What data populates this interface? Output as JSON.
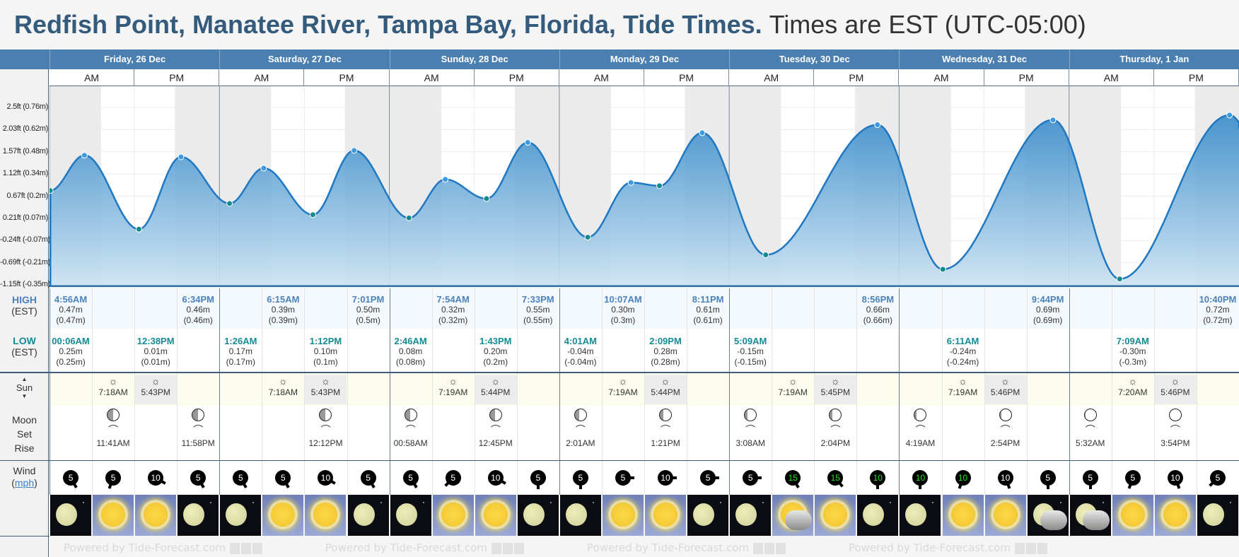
{
  "header": {
    "title": "Redfish Point, Manatee River, Tampa Bay, Florida, Tide Times.",
    "subtitle": "Times are EST (UTC-05:00)",
    "watermark": "Powered by Tide-Forecast.com"
  },
  "days": [
    {
      "label": "Friday, 26 Dec"
    },
    {
      "label": "Saturday, 27 Dec"
    },
    {
      "label": "Sunday, 28 Dec"
    },
    {
      "label": "Monday, 29 Dec"
    },
    {
      "label": "Tuesday, 30 Dec"
    },
    {
      "label": "Wednesday, 31 Dec"
    },
    {
      "label": "Thursday, 1 Jan"
    }
  ],
  "ampm": {
    "am": "AM",
    "pm": "PM"
  },
  "row_labels": {
    "high": "HIGH",
    "high_tz": "(EST)",
    "low": "LOW",
    "low_tz": "(EST)",
    "sun": "Sun",
    "moon": "Moon",
    "set": "Set",
    "rise": "Rise",
    "wind": "Wind",
    "wind_unit": "mph"
  },
  "chart_data": {
    "type": "area",
    "title": "Tide height",
    "y_ticks": [
      "2.5ft (0.76m)",
      "2.03ft (0.62m)",
      "1.57ft (0.48m)",
      "1.12ft (0.34m)",
      "0.67ft (0.2m)",
      "0.21ft (0.07m)",
      "-0.24ft (-0.07m)",
      "-0.69ft (-0.21m)",
      "-1.15ft (-0.35m)"
    ],
    "ylim_m": [
      -0.35,
      0.9
    ],
    "x_unit": "hours from Fri 26 Dec 00:00",
    "points": [
      {
        "h": 0.1,
        "m": 0.25,
        "type": "low"
      },
      {
        "h": 4.93,
        "m": 0.47,
        "type": "high"
      },
      {
        "h": 12.63,
        "m": 0.01,
        "type": "low"
      },
      {
        "h": 18.57,
        "m": 0.46,
        "type": "high"
      },
      {
        "h": 25.43,
        "m": 0.17,
        "type": "low"
      },
      {
        "h": 30.25,
        "m": 0.39,
        "type": "high"
      },
      {
        "h": 37.2,
        "m": 0.1,
        "type": "low"
      },
      {
        "h": 43.02,
        "m": 0.5,
        "type": "high"
      },
      {
        "h": 50.77,
        "m": 0.08,
        "type": "low"
      },
      {
        "h": 55.9,
        "m": 0.32,
        "type": "high"
      },
      {
        "h": 61.72,
        "m": 0.2,
        "type": "low"
      },
      {
        "h": 67.55,
        "m": 0.55,
        "type": "high"
      },
      {
        "h": 76.02,
        "m": -0.04,
        "type": "low"
      },
      {
        "h": 82.12,
        "m": 0.3,
        "type": "high"
      },
      {
        "h": 86.15,
        "m": 0.28,
        "type": "low"
      },
      {
        "h": 92.18,
        "m": 0.61,
        "type": "high"
      },
      {
        "h": 101.15,
        "m": -0.15,
        "type": "low"
      },
      {
        "h": 116.93,
        "m": 0.66,
        "type": "high"
      },
      {
        "h": 126.18,
        "m": -0.24,
        "type": "low"
      },
      {
        "h": 141.73,
        "m": 0.69,
        "type": "high"
      },
      {
        "h": 151.15,
        "m": -0.3,
        "type": "low"
      },
      {
        "h": 166.67,
        "m": 0.72,
        "type": "high"
      }
    ]
  },
  "high_tides": [
    {
      "time": "4:56AM",
      "m": "0.47m",
      "alt": "(0.47m)",
      "slot": 0
    },
    {
      "time": "6:34PM",
      "m": "0.46m",
      "alt": "(0.46m)",
      "slot": 3
    },
    {
      "time": "6:15AM",
      "m": "0.39m",
      "alt": "(0.39m)",
      "slot": 5
    },
    {
      "time": "7:01PM",
      "m": "0.50m",
      "alt": "(0.5m)",
      "slot": 7
    },
    {
      "time": "7:54AM",
      "m": "0.32m",
      "alt": "(0.32m)",
      "slot": 9
    },
    {
      "time": "7:33PM",
      "m": "0.55m",
      "alt": "(0.55m)",
      "slot": 11
    },
    {
      "time": "10:07AM",
      "m": "0.30m",
      "alt": "(0.3m)",
      "slot": 13
    },
    {
      "time": "8:11PM",
      "m": "0.61m",
      "alt": "(0.61m)",
      "slot": 15
    },
    {
      "time": "8:56PM",
      "m": "0.66m",
      "alt": "(0.66m)",
      "slot": 19
    },
    {
      "time": "9:44PM",
      "m": "0.69m",
      "alt": "(0.69m)",
      "slot": 23
    },
    {
      "time": "10:40PM",
      "m": "0.72m",
      "alt": "(0.72m)",
      "slot": 27
    }
  ],
  "low_tides": [
    {
      "time": "00:06AM",
      "m": "0.25m",
      "alt": "(0.25m)",
      "slot": 0
    },
    {
      "time": "12:38PM",
      "m": "0.01m",
      "alt": "(0.01m)",
      "slot": 2
    },
    {
      "time": "1:26AM",
      "m": "0.17m",
      "alt": "(0.17m)",
      "slot": 4
    },
    {
      "time": "1:12PM",
      "m": "0.10m",
      "alt": "(0.1m)",
      "slot": 6
    },
    {
      "time": "2:46AM",
      "m": "0.08m",
      "alt": "(0.08m)",
      "slot": 8
    },
    {
      "time": "1:43PM",
      "m": "0.20m",
      "alt": "(0.2m)",
      "slot": 10
    },
    {
      "time": "4:01AM",
      "m": "-0.04m",
      "alt": "(-0.04m)",
      "slot": 12
    },
    {
      "time": "2:09PM",
      "m": "0.28m",
      "alt": "(0.28m)",
      "slot": 14
    },
    {
      "time": "5:09AM",
      "m": "-0.15m",
      "alt": "(-0.15m)",
      "slot": 16
    },
    {
      "time": "6:11AM",
      "m": "-0.24m",
      "alt": "(-0.24m)",
      "slot": 21
    },
    {
      "time": "7:09AM",
      "m": "-0.30m",
      "alt": "(-0.3m)",
      "slot": 25
    }
  ],
  "sun": [
    {
      "rise": "7:18AM",
      "set": "5:43PM"
    },
    {
      "rise": "7:18AM",
      "set": "5:43PM"
    },
    {
      "rise": "7:19AM",
      "set": "5:44PM"
    },
    {
      "rise": "7:19AM",
      "set": "5:44PM"
    },
    {
      "rise": "7:19AM",
      "set": "5:45PM"
    },
    {
      "rise": "7:19AM",
      "set": "5:46PM"
    },
    {
      "rise": "7:20AM",
      "set": "5:46PM"
    }
  ],
  "moon": [
    {
      "time": "11:41AM",
      "kind": "rise",
      "slot": 1,
      "phase": 0.5
    },
    {
      "time": "11:58PM",
      "kind": "set",
      "slot": 3,
      "phase": 0.5
    },
    {
      "time": "12:12PM",
      "kind": "rise",
      "slot": 6,
      "phase": 0.48
    },
    {
      "time": "00:58AM",
      "kind": "set",
      "slot": 8,
      "phase": 0.45
    },
    {
      "time": "12:45PM",
      "kind": "rise",
      "slot": 10,
      "phase": 0.42
    },
    {
      "time": "2:01AM",
      "kind": "set",
      "slot": 12,
      "phase": 0.38
    },
    {
      "time": "1:21PM",
      "kind": "rise",
      "slot": 14,
      "phase": 0.33
    },
    {
      "time": "3:08AM",
      "kind": "set",
      "slot": 16,
      "phase": 0.28
    },
    {
      "time": "2:04PM",
      "kind": "rise",
      "slot": 18,
      "phase": 0.22
    },
    {
      "time": "4:19AM",
      "kind": "set",
      "slot": 20,
      "phase": 0.16
    },
    {
      "time": "2:54PM",
      "kind": "rise",
      "slot": 22,
      "phase": 0.1
    },
    {
      "time": "5:32AM",
      "kind": "set",
      "slot": 24,
      "phase": 0.05
    },
    {
      "time": "3:54PM",
      "kind": "rise",
      "slot": 26,
      "phase": 0.02
    }
  ],
  "wind": [
    {
      "speed": "5",
      "dir": 150,
      "strong": false
    },
    {
      "speed": "5",
      "dir": 200,
      "strong": false
    },
    {
      "speed": "10",
      "dir": 120,
      "strong": false
    },
    {
      "speed": "5",
      "dir": 150,
      "strong": false
    },
    {
      "speed": "5",
      "dir": 150,
      "strong": false
    },
    {
      "speed": "5",
      "dir": 150,
      "strong": false
    },
    {
      "speed": "10",
      "dir": 120,
      "strong": false
    },
    {
      "speed": "5",
      "dir": 150,
      "strong": false
    },
    {
      "speed": "5",
      "dir": 150,
      "strong": false
    },
    {
      "speed": "5",
      "dir": 225,
      "strong": false
    },
    {
      "speed": "10",
      "dir": 120,
      "strong": false
    },
    {
      "speed": "5",
      "dir": 180,
      "strong": false
    },
    {
      "speed": "5",
      "dir": 180,
      "strong": false
    },
    {
      "speed": "5",
      "dir": 90,
      "strong": false
    },
    {
      "speed": "10",
      "dir": 90,
      "strong": false
    },
    {
      "speed": "5",
      "dir": 90,
      "strong": false
    },
    {
      "speed": "5",
      "dir": 90,
      "strong": false
    },
    {
      "speed": "15",
      "dir": 150,
      "strong": true
    },
    {
      "speed": "15",
      "dir": 140,
      "strong": true
    },
    {
      "speed": "10",
      "dir": 180,
      "strong": true
    },
    {
      "speed": "10",
      "dir": 180,
      "strong": true
    },
    {
      "speed": "10",
      "dir": 200,
      "strong": true
    },
    {
      "speed": "10",
      "dir": 160,
      "strong": false
    },
    {
      "speed": "5",
      "dir": 180,
      "strong": false
    },
    {
      "speed": "5",
      "dir": 180,
      "strong": false
    },
    {
      "speed": "5",
      "dir": 200,
      "strong": false
    },
    {
      "speed": "10",
      "dir": 160,
      "strong": false
    },
    {
      "speed": "5",
      "dir": 225,
      "strong": false
    }
  ],
  "weather": [
    "moon",
    "sun",
    "sun",
    "moon",
    "moon",
    "sun",
    "sun",
    "moon",
    "moon",
    "sun",
    "sun",
    "moon",
    "moon",
    "sun",
    "sun",
    "moon",
    "moon",
    "sun-cloud",
    "sun",
    "moon",
    "moon",
    "sun",
    "sun",
    "moon-cloud",
    "moon-cloud",
    "sun",
    "sun",
    "moon"
  ],
  "colors": {
    "brand": "#345a7c",
    "header": "#4a7faf",
    "high": "#4a82bd",
    "low": "#148a94",
    "wind_strong": "#22e022"
  }
}
